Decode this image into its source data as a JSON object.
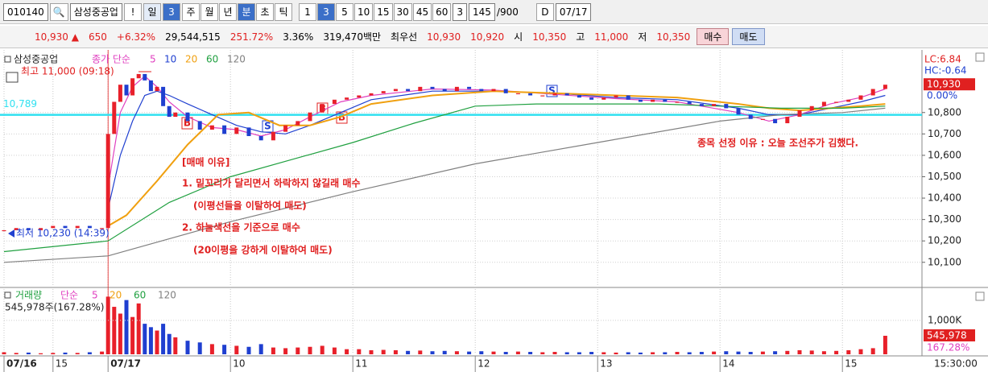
{
  "toolbar": {
    "code": "010140",
    "name": "삼성중공업",
    "alert": "!",
    "period": "일",
    "period_n": "3",
    "periods": [
      "주",
      "월",
      "년",
      "분",
      "초",
      "틱"
    ],
    "minutes": [
      "1",
      "3",
      "5",
      "10",
      "15",
      "30",
      "45",
      "60"
    ],
    "count_n": "3",
    "bars": "145",
    "bars_max": "/900",
    "d": "D",
    "date": "07/17"
  },
  "info": {
    "price": "10,930",
    "arrow": "▲",
    "change": "650",
    "change_pct": "+6.32%",
    "volume": "29,544,515",
    "volume_pct": "251.72%",
    "turnover": "3.36%",
    "amount": "319,470백만",
    "best": "최우선",
    "ask": "10,930",
    "bid": "10,920",
    "open_label": "시",
    "open": "10,350",
    "high_label": "고",
    "high": "11,000",
    "low_label": "저",
    "low": "10,350",
    "buy": "매수",
    "sell": "매도"
  },
  "chart_data": {
    "type": "candlestick",
    "title": "삼성중공업",
    "legend_prefix": "종가 단순",
    "x": [
      0,
      2,
      4,
      6,
      8,
      10,
      12,
      14,
      16,
      17,
      18,
      19,
      20,
      21,
      22,
      23,
      24,
      25,
      26,
      27,
      28,
      30,
      32,
      34,
      36,
      38,
      40,
      42,
      44,
      46,
      48,
      50,
      52,
      54,
      56,
      58,
      60,
      62,
      64,
      66,
      68,
      70,
      72,
      74,
      76,
      78,
      80,
      82,
      84,
      86,
      88,
      90,
      92,
      94,
      96,
      98,
      100,
      102,
      104,
      106,
      108,
      110,
      112,
      114,
      116,
      118,
      120,
      122,
      124,
      126,
      128,
      130,
      132,
      134,
      136,
      138,
      140,
      142,
      144
    ],
    "open": [
      10250,
      10250,
      10260,
      10250,
      10260,
      10270,
      10260,
      10270,
      10260,
      10260,
      10700,
      10850,
      10930,
      10880,
      10960,
      10980,
      10950,
      10900,
      10920,
      10830,
      10780,
      10800,
      10760,
      10720,
      10740,
      10700,
      10730,
      10690,
      10670,
      10710,
      10740,
      10760,
      10800,
      10840,
      10860,
      10870,
      10880,
      10890,
      10900,
      10910,
      10900,
      10920,
      10910,
      10900,
      10920,
      10910,
      10900,
      10910,
      10890,
      10890,
      10880,
      10880,
      10890,
      10880,
      10870,
      10860,
      10870,
      10880,
      10860,
      10850,
      10860,
      10850,
      10850,
      10840,
      10830,
      10840,
      10820,
      10790,
      10770,
      10770,
      10750,
      10780,
      10810,
      10830,
      10850,
      10850,
      10860,
      10880,
      10910
    ],
    "close": [
      10250,
      10260,
      10250,
      10260,
      10270,
      10260,
      10270,
      10260,
      10260,
      10700,
      10850,
      10930,
      10880,
      10960,
      10980,
      10950,
      10900,
      10920,
      10830,
      10780,
      10800,
      10760,
      10720,
      10740,
      10700,
      10730,
      10690,
      10670,
      10710,
      10740,
      10760,
      10800,
      10840,
      10860,
      10870,
      10880,
      10890,
      10900,
      10910,
      10900,
      10920,
      10910,
      10900,
      10920,
      10910,
      10900,
      10910,
      10890,
      10890,
      10880,
      10880,
      10890,
      10880,
      10870,
      10860,
      10870,
      10880,
      10860,
      10850,
      10860,
      10850,
      10850,
      10840,
      10830,
      10840,
      10820,
      10790,
      10770,
      10770,
      10750,
      10780,
      10810,
      10830,
      10850,
      10850,
      10860,
      10880,
      10910,
      10930
    ],
    "xlim": [
      0,
      150
    ],
    "xticks": [
      {
        "value": 0,
        "label": "07/16"
      },
      {
        "value": 8,
        "label": "15"
      },
      {
        "value": 17,
        "label": "07/17"
      },
      {
        "value": 37,
        "label": "10"
      },
      {
        "value": 57,
        "label": "11"
      },
      {
        "value": 77,
        "label": "12"
      },
      {
        "value": 97,
        "label": "13"
      },
      {
        "value": 117,
        "label": "14"
      },
      {
        "value": 137,
        "label": "15"
      }
    ],
    "x_end_label": "15:30:00",
    "ylim": [
      9990,
      11070
    ],
    "yticks": [
      {
        "value": 10100,
        "label": "10,100"
      },
      {
        "value": 10200,
        "label": "10,200"
      },
      {
        "value": 10300,
        "label": "10,300"
      },
      {
        "value": 10400,
        "label": "10,400"
      },
      {
        "value": 10500,
        "label": "10,500"
      },
      {
        "value": 10600,
        "label": "10,600"
      },
      {
        "value": 10700,
        "label": "10,700"
      },
      {
        "value": 10800,
        "label": "10,800"
      }
    ],
    "up_color": "#e8202a",
    "down_color": "#1f3fd0",
    "series": [
      {
        "name": "5",
        "color": "#e040c0",
        "x": [
          17,
          19,
          21,
          23,
          25,
          27,
          30,
          34,
          38,
          42,
          46,
          50,
          55,
          60,
          70,
          80,
          90,
          100,
          110,
          120,
          125,
          130,
          135,
          140,
          144
        ],
        "values": [
          10450,
          10800,
          10920,
          10970,
          10920,
          10850,
          10780,
          10730,
          10720,
          10690,
          10720,
          10780,
          10850,
          10880,
          10910,
          10905,
          10885,
          10865,
          10850,
          10800,
          10760,
          10790,
          10840,
          10870,
          10910
        ]
      },
      {
        "name": "10",
        "color": "#2040d0",
        "x": [
          17,
          19,
          21,
          23,
          25,
          27,
          30,
          34,
          38,
          42,
          46,
          50,
          55,
          60,
          70,
          80,
          90,
          100,
          110,
          120,
          125,
          130,
          135,
          140,
          144
        ],
        "values": [
          10350,
          10600,
          10760,
          10880,
          10900,
          10880,
          10840,
          10790,
          10740,
          10710,
          10700,
          10740,
          10800,
          10860,
          10900,
          10900,
          10890,
          10870,
          10860,
          10820,
          10790,
          10790,
          10820,
          10850,
          10880
        ]
      },
      {
        "name": "20",
        "color": "#f0a010",
        "x": [
          17,
          20,
          25,
          30,
          35,
          40,
          45,
          50,
          55,
          60,
          70,
          80,
          90,
          100,
          110,
          120,
          125,
          130,
          135,
          140,
          144
        ],
        "values": [
          10270,
          10320,
          10480,
          10650,
          10790,
          10800,
          10740,
          10740,
          10780,
          10840,
          10880,
          10900,
          10890,
          10880,
          10870,
          10840,
          10820,
          10810,
          10820,
          10830,
          10840
        ]
      },
      {
        "name": "60",
        "color": "#20a040",
        "x": [
          0,
          17,
          27,
          37,
          47,
          57,
          67,
          77,
          87,
          97,
          107,
          117,
          127,
          137,
          144
        ],
        "values": [
          10150,
          10200,
          10380,
          10500,
          10580,
          10660,
          10750,
          10830,
          10840,
          10840,
          10840,
          10830,
          10820,
          10820,
          10830
        ]
      },
      {
        "name": "120",
        "color": "#808080",
        "x": [
          0,
          17,
          37,
          57,
          77,
          97,
          117,
          127,
          137,
          144
        ],
        "values": [
          10100,
          10130,
          10290,
          10430,
          10560,
          10660,
          10760,
          10790,
          10800,
          10820
        ]
      }
    ],
    "hline": {
      "value": 10789,
      "label": "10,789",
      "color": "#30e0f0"
    },
    "right_labels": [
      "LC:6.84",
      "HC:-0.64"
    ],
    "last_price": {
      "value": 10930,
      "label": "10,930"
    },
    "ref_pct": "0.00%",
    "high_note": "최고 11,000 (09:18)",
    "low_note": "최저 10,230 (14:39)",
    "notes": [
      "[매매 이유]",
      "1. 밑꼬리가 달리면서 하락하지 않길래 매수",
      "(이평선들을 이탈하여 매도)",
      "2. 하늘색선을 기준으로 매수",
      "(20이평을 강하게 이탈하여 매도)"
    ],
    "reason": "종목 선정 이유 : 오늘 조선주가 김했다.",
    "volume": {
      "title": "거래량",
      "legend_prefix": "단순",
      "legend": [
        {
          "name": "5",
          "color": "#e040c0"
        },
        {
          "name": "20",
          "color": "#f0a010"
        },
        {
          "name": "60",
          "color": "#20a040"
        },
        {
          "name": "120",
          "color": "#808080"
        }
      ],
      "summary": "545,978주(167.28%)",
      "values": [
        60,
        40,
        50,
        30,
        40,
        50,
        40,
        60,
        80,
        1700,
        1400,
        1200,
        1600,
        1100,
        1500,
        900,
        800,
        700,
        900,
        600,
        500,
        400,
        350,
        300,
        280,
        250,
        220,
        300,
        200,
        180,
        200,
        220,
        250,
        200,
        150,
        150,
        120,
        130,
        120,
        100,
        110,
        90,
        100,
        90,
        80,
        90,
        80,
        70,
        80,
        70,
        60,
        70,
        60,
        60,
        70,
        60,
        50,
        60,
        50,
        60,
        60,
        70,
        60,
        70,
        80,
        90,
        80,
        70,
        80,
        90,
        100,
        120,
        110,
        90,
        100,
        120,
        150,
        180,
        545.978
      ],
      "ylim": [
        0,
        1900
      ],
      "yticks": [
        {
          "value": 1000,
          "label": "1,000K"
        }
      ],
      "last": {
        "value": 545.978,
        "label": "545,978"
      },
      "last_pct": "167.28%"
    }
  }
}
